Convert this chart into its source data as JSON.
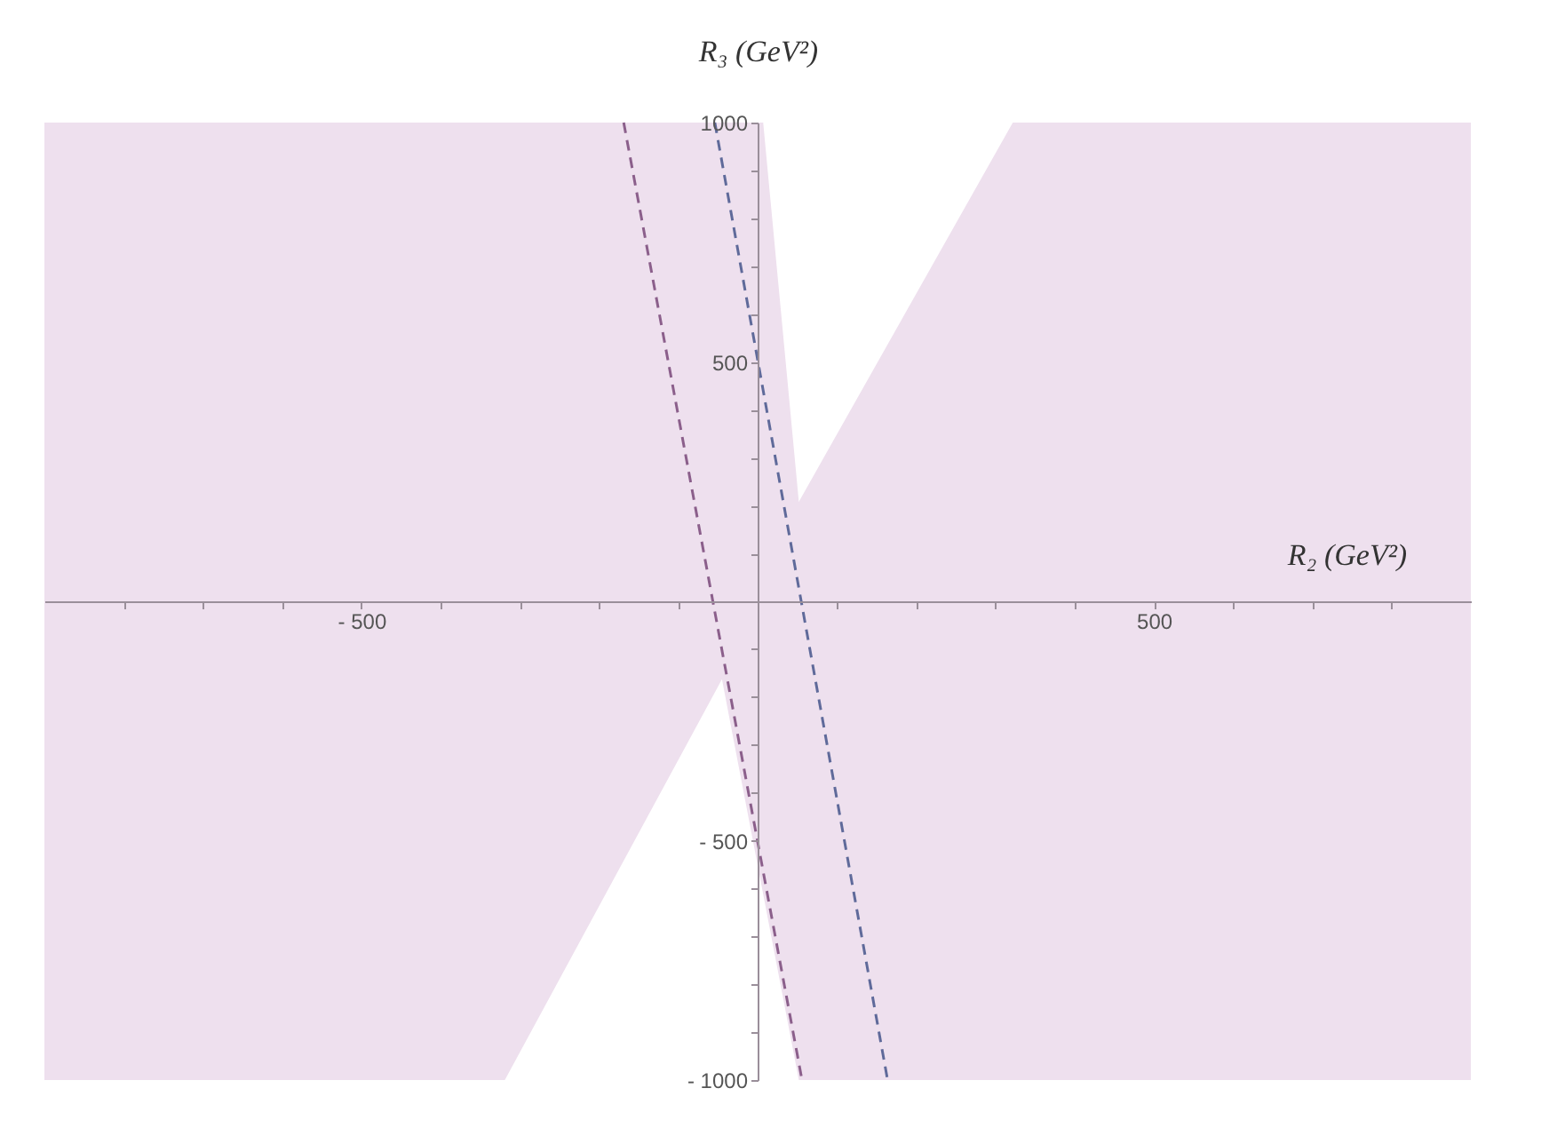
{
  "chart_data": {
    "type": "area",
    "xlabel": "R₂ (GeV²)",
    "ylabel": "R₃ (GeV²)",
    "xlim": [
      -900,
      900
    ],
    "ylim": [
      -1000,
      1000
    ],
    "xticks": [
      {
        "value": -800,
        "label": null
      },
      {
        "value": -700,
        "label": null
      },
      {
        "value": -600,
        "label": null
      },
      {
        "value": -500,
        "label": "- 500"
      },
      {
        "value": -400,
        "label": null
      },
      {
        "value": -300,
        "label": null
      },
      {
        "value": -200,
        "label": null
      },
      {
        "value": -100,
        "label": null
      },
      {
        "value": 100,
        "label": null
      },
      {
        "value": 200,
        "label": null
      },
      {
        "value": 300,
        "label": null
      },
      {
        "value": 400,
        "label": null
      },
      500,
      {
        "value": 600,
        "label": null
      },
      {
        "value": 700,
        "label": null
      },
      {
        "value": 800,
        "label": null
      }
    ],
    "yticks": [
      {
        "value": -1000,
        "label": "- 1000"
      },
      {
        "value": -900,
        "label": null
      },
      {
        "value": -800,
        "label": null
      },
      {
        "value": -700,
        "label": null
      },
      {
        "value": -600,
        "label": null
      },
      {
        "value": -500,
        "label": "- 500"
      },
      {
        "value": -400,
        "label": null
      },
      {
        "value": -300,
        "label": null
      },
      {
        "value": -200,
        "label": null
      },
      {
        "value": -100,
        "label": null
      },
      {
        "value": 100,
        "label": null
      },
      {
        "value": 200,
        "label": null
      },
      {
        "value": 300,
        "label": null
      },
      {
        "value": 400,
        "label": null
      },
      500,
      {
        "value": 600,
        "label": null
      },
      {
        "value": 700,
        "label": null
      },
      {
        "value": 800,
        "label": null
      },
      {
        "value": 900,
        "label": null
      },
      1000
    ],
    "grid": false,
    "series": [
      {
        "type": "area",
        "color": "#eee0ee",
        "x": [
          -900,
          7,
          52,
          322,
          900
        ],
        "values": [
          1000,
          1000,
          208,
          1000,
          1000
        ]
      },
      {
        "type": "area",
        "color": "#eee0ee",
        "x": [
          -900,
          -319,
          -45,
          52,
          900
        ],
        "values": [
          -1000,
          -1000,
          -163,
          -1000,
          -1000
        ]
      },
      {
        "type": "line",
        "color": "#8b5f8b",
        "line_style": "dashed",
        "x": [
          -169,
          56
        ],
        "values": [
          1000,
          -1000
        ]
      },
      {
        "type": "line",
        "color": "#5f6a9a",
        "line_style": "dashed",
        "x": [
          -54,
          164
        ],
        "values": [
          1000,
          -1000
        ]
      }
    ]
  }
}
